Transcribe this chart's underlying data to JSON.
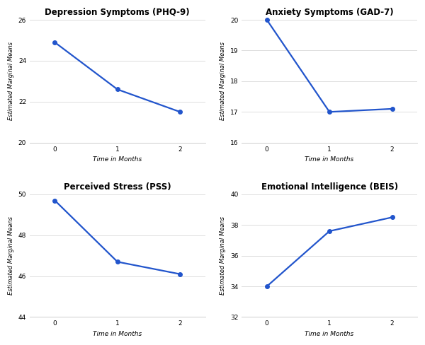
{
  "plots": [
    {
      "title": "Depression Symptoms (PHQ-9)",
      "x": [
        0,
        1,
        2
      ],
      "y": [
        24.9,
        22.6,
        21.5
      ],
      "ylim": [
        20,
        26
      ],
      "yticks": [
        20,
        22,
        24,
        26
      ],
      "xlabel": "Time in Months",
      "ylabel": "Estimated Marginal Means"
    },
    {
      "title": "Anxiety Symptoms (GAD-7)",
      "x": [
        0,
        1,
        2
      ],
      "y": [
        20.0,
        17.0,
        17.1
      ],
      "ylim": [
        16,
        20
      ],
      "yticks": [
        16,
        17,
        18,
        19,
        20
      ],
      "xlabel": "Time in Months",
      "ylabel": "Estimated Marginal Means"
    },
    {
      "title": "Perceived Stress (PSS)",
      "x": [
        0,
        1,
        2
      ],
      "y": [
        49.7,
        46.7,
        46.1
      ],
      "ylim": [
        44,
        50
      ],
      "yticks": [
        44,
        46,
        48,
        50
      ],
      "xlabel": "Time in Months",
      "ylabel": "Estimated Marginal Means"
    },
    {
      "title": "Emotional Intelligence (BEIS)",
      "x": [
        0,
        1,
        2
      ],
      "y": [
        34.0,
        37.6,
        38.5
      ],
      "ylim": [
        32,
        40
      ],
      "yticks": [
        32,
        34,
        36,
        38,
        40
      ],
      "xlabel": "Time in Months",
      "ylabel": "Estimated Marginal Means"
    }
  ],
  "line_color": "#2255cc",
  "marker": "o",
  "marker_size": 4,
  "line_width": 1.6,
  "bg_color": "#ffffff",
  "grid_color": "#dddddd",
  "title_fontsize": 8.5,
  "label_fontsize": 6.5,
  "tick_fontsize": 6.5,
  "ylabel_fontsize": 6.0
}
